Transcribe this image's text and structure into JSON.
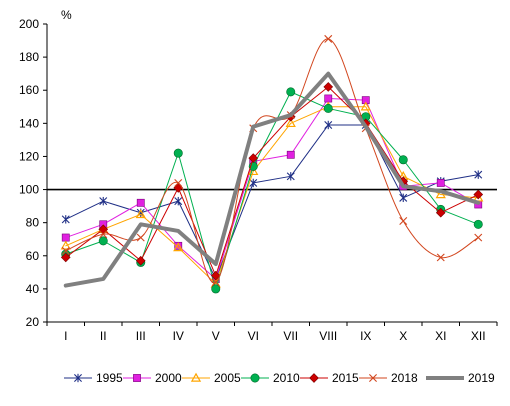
{
  "chart_data": {
    "type": "line",
    "title": "",
    "xlabel": "",
    "ylabel": "",
    "unit_label": "%",
    "categories": [
      "I",
      "II",
      "III",
      "IV",
      "V",
      "VI",
      "VII",
      "VIII",
      "IX",
      "X",
      "XI",
      "XII"
    ],
    "ylim": [
      20,
      200
    ],
    "yticks": [
      20,
      40,
      60,
      80,
      100,
      120,
      140,
      160,
      180,
      200
    ],
    "grid": false,
    "reference_line": 100,
    "legend_position": "bottom",
    "series": [
      {
        "name": "1995",
        "color": "#1f2f86",
        "marker": "star",
        "smooth": false,
        "width": 1,
        "values": [
          82,
          93,
          86,
          93,
          46,
          104,
          108,
          139,
          139,
          95,
          105,
          109
        ]
      },
      {
        "name": "2000",
        "color": "#e020e0",
        "marker": "square",
        "smooth": false,
        "width": 1,
        "values": [
          71,
          79,
          92,
          66,
          46,
          117,
          121,
          155,
          154,
          102,
          104,
          91
        ]
      },
      {
        "name": "2005",
        "color": "#ffa500",
        "marker": "triangle",
        "smooth": false,
        "width": 1,
        "values": [
          66,
          76,
          85,
          65,
          43,
          111,
          140,
          150,
          150,
          108,
          97,
          95
        ]
      },
      {
        "name": "2010",
        "color": "#00b050",
        "marker": "circle",
        "smooth": false,
        "width": 1,
        "values": [
          61,
          69,
          56,
          122,
          40,
          114,
          159,
          149,
          144,
          118,
          88,
          79
        ]
      },
      {
        "name": "2015",
        "color": "#cc0000",
        "marker": "diamond",
        "smooth": false,
        "width": 1,
        "values": [
          59,
          76,
          57,
          101,
          48,
          119,
          144,
          162,
          140,
          105,
          86,
          97
        ]
      },
      {
        "name": "2018",
        "color": "#d2461e",
        "marker": "x",
        "smooth": true,
        "width": 1,
        "values": [
          63,
          73,
          71,
          104,
          44,
          137,
          145,
          191,
          137,
          81,
          59,
          71
        ]
      },
      {
        "name": "2019",
        "color": "#808080",
        "marker": "none",
        "smooth": false,
        "width": 4,
        "values": [
          42,
          46,
          79,
          75,
          55,
          138,
          145,
          170,
          138,
          102,
          99,
          92
        ]
      }
    ]
  }
}
